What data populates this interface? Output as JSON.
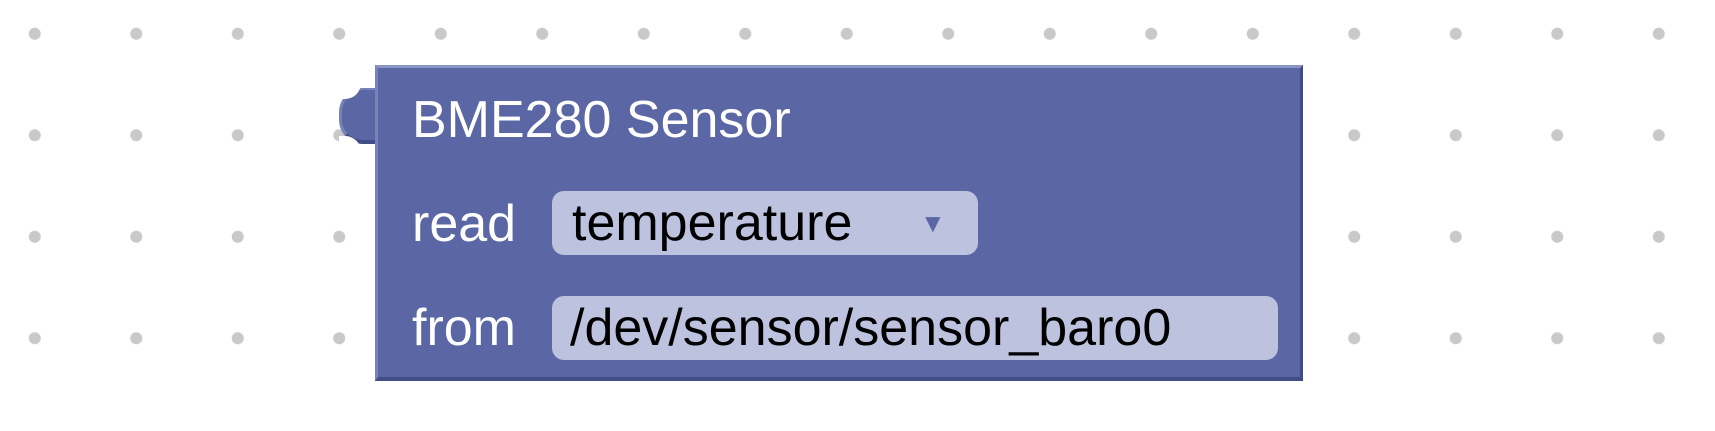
{
  "block": {
    "title": "BME280 Sensor",
    "read_label": "read",
    "read_value": "temperature",
    "from_label": "from",
    "from_value": "/dev/sensor/sensor_baro0",
    "dropdown_icon": "triangle-down-icon"
  },
  "colors": {
    "block_fill": "#5b67a5",
    "field_fill": "#bdc2df",
    "grid_dot": "#c9c9c9",
    "background": "#ffffff"
  }
}
